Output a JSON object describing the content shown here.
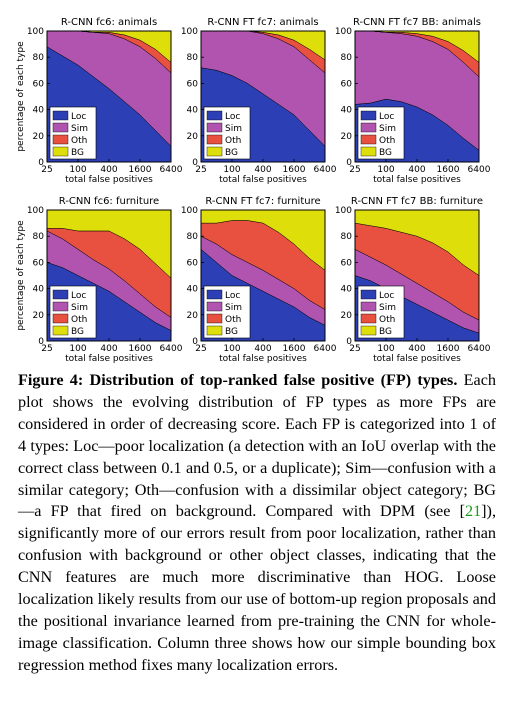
{
  "figure": {
    "caption_title": "Figure 4: Distribution of top-ranked false positive (FP) types.",
    "caption_part1": "Each plot shows the evolving distribution of FP types as more FPs are considered in order of decreasing score. Each FP is categorized into 1 of 4 types: Loc—poor localization (a detection with an IoU overlap with the correct class between 0.1 and 0.5, or a duplicate); Sim—confusion with a similar category; Oth—confusion with a dissimilar object category; BG—a FP that fired on background. Compared with DPM (see [",
    "caption_citation": "21",
    "caption_part2": "]), significantly more of our errors result from poor localization, rather than confusion with background or other object classes, indicating that the CNN features are much more discriminative than HOG. Loose localization likely results from our use of bottom-up region proposals and the positional invariance learned from pre-training the CNN for whole-image classification. Column three shows how our simple bounding box regression method fixes many localization errors."
  },
  "colors": {
    "Loc": "#2c3fb5",
    "Sim": "#b054b0",
    "Oth": "#e8513f",
    "BG": "#dede0a"
  },
  "chart_data": [
    {
      "type": "area",
      "title": "R-CNN fc6: animals",
      "xlabel": "total false positives",
      "ylabel": "percentage of each type",
      "x": [
        25,
        50,
        100,
        200,
        400,
        800,
        1600,
        3200,
        6400
      ],
      "xscale": "log",
      "xticks": [
        "25",
        "100",
        "400",
        "1600",
        "6400"
      ],
      "ylim": [
        0,
        100
      ],
      "yticks": [
        "0",
        "20",
        "40",
        "60",
        "80",
        "100"
      ],
      "series": [
        {
          "name": "Loc",
          "values": [
            88,
            81,
            74,
            65,
            56,
            46,
            36,
            24,
            12
          ]
        },
        {
          "name": "Sim",
          "values": [
            12,
            19,
            26,
            34,
            42,
            48,
            52,
            55,
            56
          ]
        },
        {
          "name": "Oth",
          "values": [
            0,
            0,
            0,
            0,
            1,
            3,
            5,
            7,
            8
          ]
        },
        {
          "name": "BG",
          "values": [
            0,
            0,
            0,
            1,
            1,
            3,
            7,
            14,
            24
          ]
        }
      ],
      "legend": "bottom-left"
    },
    {
      "type": "area",
      "title": "R-CNN FT fc7: animals",
      "xlabel": "total false positives",
      "x": [
        25,
        50,
        100,
        200,
        400,
        800,
        1600,
        3200,
        6400
      ],
      "xscale": "log",
      "xticks": [
        "25",
        "100",
        "400",
        "1600",
        "6400"
      ],
      "ylim": [
        0,
        100
      ],
      "yticks": [
        "0",
        "20",
        "40",
        "60",
        "80",
        "100"
      ],
      "series": [
        {
          "name": "Loc",
          "values": [
            72,
            70,
            66,
            60,
            52,
            44,
            36,
            24,
            12
          ]
        },
        {
          "name": "Sim",
          "values": [
            28,
            30,
            34,
            40,
            46,
            50,
            52,
            54,
            56
          ]
        },
        {
          "name": "Oth",
          "values": [
            0,
            0,
            0,
            0,
            1,
            3,
            5,
            8,
            10
          ]
        },
        {
          "name": "BG",
          "values": [
            0,
            0,
            0,
            0,
            1,
            3,
            7,
            14,
            22
          ]
        }
      ],
      "legend": "bottom-left"
    },
    {
      "type": "area",
      "title": "R-CNN FT fc7 BB: animals",
      "xlabel": "total false positives",
      "x": [
        25,
        50,
        100,
        200,
        400,
        800,
        1600,
        3200,
        6400
      ],
      "xscale": "log",
      "xticks": [
        "25",
        "100",
        "400",
        "1600",
        "6400"
      ],
      "ylim": [
        0,
        100
      ],
      "yticks": [
        "0",
        "20",
        "40",
        "60",
        "80",
        "100"
      ],
      "series": [
        {
          "name": "Loc",
          "values": [
            44,
            45,
            48,
            46,
            42,
            36,
            28,
            18,
            9
          ]
        },
        {
          "name": "Sim",
          "values": [
            56,
            55,
            51,
            52,
            54,
            56,
            58,
            58,
            56
          ]
        },
        {
          "name": "Oth",
          "values": [
            0,
            0,
            0,
            1,
            2,
            4,
            6,
            9,
            11
          ]
        },
        {
          "name": "BG",
          "values": [
            0,
            0,
            1,
            1,
            2,
            4,
            8,
            15,
            24
          ]
        }
      ],
      "legend": "bottom-left"
    },
    {
      "type": "area",
      "title": "R-CNN fc6: furniture",
      "xlabel": "total false positives",
      "ylabel": "percentage of each type",
      "x": [
        25,
        50,
        100,
        200,
        400,
        800,
        1600,
        3200,
        6400
      ],
      "xscale": "log",
      "xticks": [
        "25",
        "100",
        "400",
        "1600",
        "6400"
      ],
      "ylim": [
        0,
        100
      ],
      "yticks": [
        "0",
        "20",
        "40",
        "60",
        "80",
        "100"
      ],
      "series": [
        {
          "name": "Loc",
          "values": [
            60,
            56,
            50,
            44,
            38,
            30,
            22,
            14,
            8
          ]
        },
        {
          "name": "Sim",
          "values": [
            24,
            22,
            20,
            18,
            17,
            16,
            14,
            12,
            10
          ]
        },
        {
          "name": "Oth",
          "values": [
            2,
            8,
            14,
            22,
            29,
            32,
            34,
            33,
            30
          ]
        },
        {
          "name": "BG",
          "values": [
            14,
            14,
            16,
            16,
            16,
            22,
            30,
            41,
            52
          ]
        }
      ],
      "legend": "bottom-left"
    },
    {
      "type": "area",
      "title": "R-CNN FT fc7: furniture",
      "xlabel": "total false positives",
      "x": [
        25,
        50,
        100,
        200,
        400,
        800,
        1600,
        3200,
        6400
      ],
      "xscale": "log",
      "xticks": [
        "25",
        "100",
        "400",
        "1600",
        "6400"
      ],
      "ylim": [
        0,
        100
      ],
      "yticks": [
        "0",
        "20",
        "40",
        "60",
        "80",
        "100"
      ],
      "series": [
        {
          "name": "Loc",
          "values": [
            70,
            60,
            50,
            44,
            38,
            32,
            26,
            18,
            12
          ]
        },
        {
          "name": "Sim",
          "values": [
            10,
            14,
            16,
            16,
            16,
            15,
            14,
            13,
            12
          ]
        },
        {
          "name": "Oth",
          "values": [
            10,
            16,
            26,
            32,
            36,
            36,
            34,
            32,
            30
          ]
        },
        {
          "name": "BG",
          "values": [
            10,
            10,
            8,
            8,
            10,
            17,
            26,
            37,
            46
          ]
        }
      ],
      "legend": "bottom-left"
    },
    {
      "type": "area",
      "title": "R-CNN FT fc7 BB: furniture",
      "xlabel": "total false positives",
      "x": [
        25,
        50,
        100,
        200,
        400,
        800,
        1600,
        3200,
        6400
      ],
      "xscale": "log",
      "xticks": [
        "25",
        "100",
        "400",
        "1600",
        "6400"
      ],
      "ylim": [
        0,
        100
      ],
      "yticks": [
        "0",
        "20",
        "40",
        "60",
        "80",
        "100"
      ],
      "series": [
        {
          "name": "Loc",
          "values": [
            50,
            46,
            40,
            34,
            28,
            22,
            16,
            10,
            6
          ]
        },
        {
          "name": "Sim",
          "values": [
            20,
            18,
            18,
            17,
            16,
            15,
            14,
            12,
            10
          ]
        },
        {
          "name": "Oth",
          "values": [
            20,
            24,
            28,
            32,
            36,
            38,
            38,
            36,
            34
          ]
        },
        {
          "name": "BG",
          "values": [
            10,
            12,
            14,
            17,
            20,
            25,
            32,
            42,
            50
          ]
        }
      ],
      "legend": "bottom-left"
    }
  ]
}
